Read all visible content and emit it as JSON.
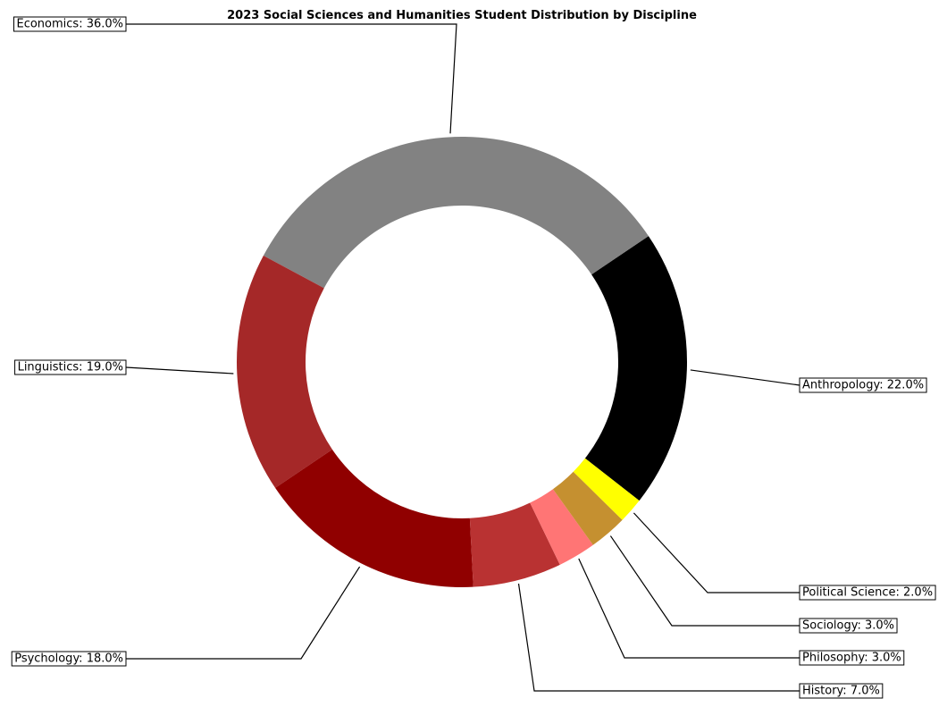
{
  "chart_data": {
    "type": "pie",
    "variant": "donut",
    "title": "2023 Social Sciences and Humanities Student Distribution by Discipline",
    "slices": [
      {
        "name": "Anthropology",
        "value": 22.0,
        "label": "Anthropology: 22.0%",
        "color": "#000000"
      },
      {
        "name": "Economics",
        "value": 36.0,
        "label": "Economics: 36.0%",
        "color": "#828282"
      },
      {
        "name": "Linguistics",
        "value": 19.0,
        "label": "Linguistics: 19.0%",
        "color": "#a52828"
      },
      {
        "name": "Psychology",
        "value": 18.0,
        "label": "Psychology: 18.0%",
        "color": "#900000"
      },
      {
        "name": "History",
        "value": 7.0,
        "label": "History: 7.0%",
        "color": "#b93232"
      },
      {
        "name": "Philosophy",
        "value": 3.0,
        "label": "Philosophy: 3.0%",
        "color": "#ff7575"
      },
      {
        "name": "Sociology",
        "value": 3.0,
        "label": "Sociology: 3.0%",
        "color": "#c59030"
      },
      {
        "name": "Political Science",
        "value": 2.0,
        "label": "Political Science: 2.0%",
        "color": "#ffff00"
      }
    ],
    "legend": "none",
    "grid": false
  }
}
